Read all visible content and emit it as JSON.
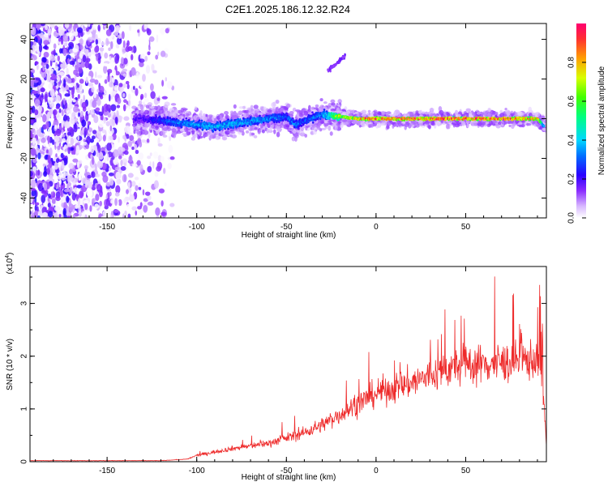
{
  "title": "C2E1.2025.186.12.32.R24",
  "colors": {
    "snr_line": "#ee2a2a",
    "colormap": [
      "#f0f0ff",
      "#c77dff",
      "#7a00ff",
      "#0000ff",
      "#00c8ff",
      "#00ff70",
      "#c8ff00",
      "#ff8000",
      "#ff0050"
    ]
  },
  "chart_data": [
    {
      "type": "heatmap",
      "title": "C2E1.2025.186.12.32.R24",
      "xlabel": "Height of straight line (km)",
      "ylabel": "Frequency (Hz)",
      "xlim": [
        -193,
        95
      ],
      "ylim": [
        -50,
        48
      ],
      "x_ticks": [
        -150,
        -100,
        -50,
        0,
        50
      ],
      "y_ticks": [
        -40,
        -20,
        0,
        20,
        40
      ],
      "grid": false,
      "colorbar": {
        "label": "Normalized spectral amplitude",
        "range": [
          0,
          1
        ],
        "ticks": [
          0.0,
          0.2,
          0.4,
          0.6,
          0.8
        ]
      },
      "ridge": {
        "description_points_x": [
          -130,
          -110,
          -90,
          -75,
          -60,
          -50,
          -45,
          -40,
          -30,
          -20,
          -10,
          0,
          20,
          50,
          80,
          90,
          94
        ],
        "center_frequency_hz": [
          0,
          -2,
          -4,
          -2,
          0,
          1,
          -3,
          -1,
          2,
          1,
          0,
          0,
          0,
          0,
          0,
          0,
          -4
        ],
        "peak_amplitude": [
          0.2,
          0.35,
          0.4,
          0.4,
          0.35,
          0.3,
          0.35,
          0.3,
          0.35,
          0.7,
          0.85,
          0.9,
          0.95,
          0.95,
          0.9,
          0.85,
          0.3
        ]
      }
    },
    {
      "type": "line",
      "xlabel": "Height of straight line (km)",
      "ylabel": "SNR (10 * v/v)",
      "y_multiplier_label": "(x10",
      "y_multiplier_exp": "4",
      "y_multiplier_close": ")",
      "xlim": [
        -193,
        95
      ],
      "ylim": [
        0,
        3.7
      ],
      "x_ticks": [
        -150,
        -100,
        -50,
        0,
        50
      ],
      "y_ticks": [
        0,
        1,
        2,
        3
      ],
      "grid": false,
      "series": [
        {
          "color": "#ee2a2a",
          "trend_x": [
            -193,
            -120,
            -105,
            -100,
            -80,
            -60,
            -40,
            -30,
            -20,
            -10,
            0,
            20,
            40,
            50,
            60,
            80,
            90,
            93,
            95
          ],
          "trend_y": [
            0.02,
            0.02,
            0.05,
            0.12,
            0.25,
            0.35,
            0.55,
            0.7,
            0.9,
            1.1,
            1.3,
            1.5,
            1.75,
            1.85,
            1.85,
            1.9,
            1.95,
            1.5,
            0.3
          ]
        }
      ]
    }
  ]
}
